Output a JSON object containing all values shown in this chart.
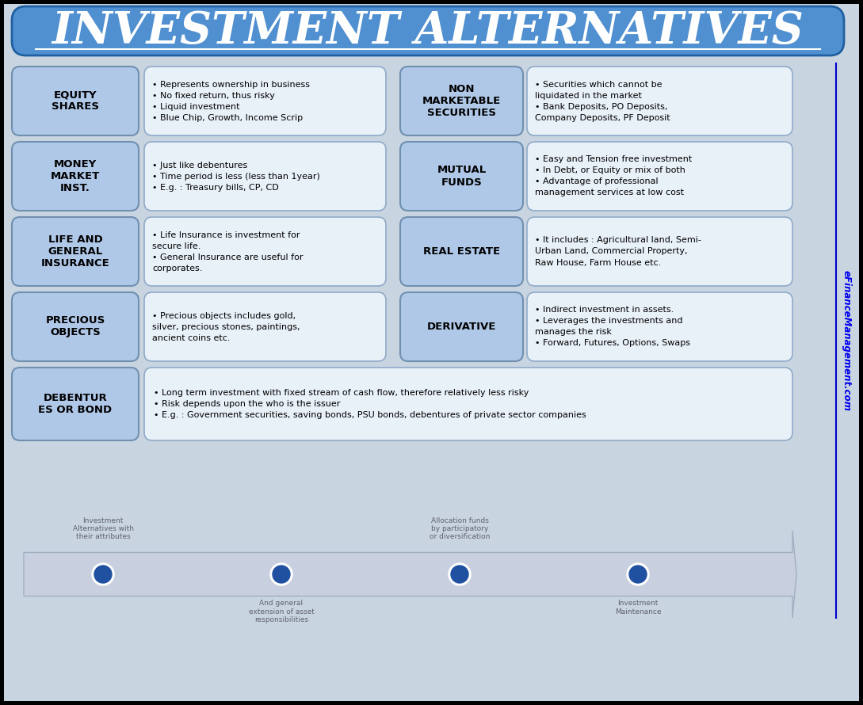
{
  "title": "INVESTMENT ALTERNATIVES",
  "title_bg": "#5090d0",
  "title_color": "white",
  "bg_color": "#c8d8e8",
  "label_box_color": "#b0c8e8",
  "label_box_edge": "#7090b0",
  "desc_box_color": "#e8f0f8",
  "desc_box_edge": "#90aac8",
  "watermark": "eFinanceManagement.com",
  "watermark_color": "#0000ee",
  "rows": [
    {
      "label": "EQUITY\nSHARES",
      "bullets": [
        "Represents ownership in business",
        "No fixed return, thus risky",
        "Liquid investment",
        "Blue Chip, Growth, Income Scrip"
      ]
    },
    {
      "label": "MONEY\nMARKET\nINST.",
      "bullets": [
        "Just like debentures",
        "Time period is less (less than 1year)",
        "E.g. : Treasury bills, CP, CD"
      ]
    },
    {
      "label": "LIFE AND\nGENERAL\nINSURANCE",
      "bullets": [
        "Life Insurance is investment for\nsecure life.",
        "General Insurance are useful for\ncorporates."
      ]
    },
    {
      "label": "PRECIOUS\nOBJECTS",
      "bullets": [
        "Precious objects includes gold,\nsilver, precious stones, paintings,\nancient coins etc."
      ]
    }
  ],
  "right_rows": [
    {
      "label": "NON\nMARKETABLE\nSECURITIES",
      "bullets": [
        "Securities which cannot be\nliquidated in the market",
        "Bank Deposits, PO Deposits,\nCompany Deposits, PF Deposit"
      ]
    },
    {
      "label": "MUTUAL\nFUNDS",
      "bullets": [
        "Easy and Tension free investment",
        "In Debt, or Equity or mix of both",
        "Advantage of professional\nmanagement services at low cost"
      ]
    },
    {
      "label": "REAL ESTATE",
      "bullets": [
        "It includes : Agricultural land, Semi-\nUrban Land, Commercial Property,\nRaw House, Farm House etc."
      ]
    },
    {
      "label": "DERIVATIVE",
      "bullets": [
        "Indirect investment in assets.",
        "Leverages the investments and\nmanages the risk",
        "Forward, Futures, Options, Swaps"
      ]
    }
  ],
  "bottom_label": "DEBENTUR\nES OR BOND",
  "bottom_bullets": [
    "Long term investment with fixed stream of cash flow, therefore relatively less risky",
    "Risk depends upon the who is the issuer",
    "E.g. : Government securities, saving bonds, PSU bonds, debentures of private sector companies"
  ],
  "arrow_color": "#c8d0e0",
  "dot_color": "#2050a0",
  "dot_outline": "white"
}
